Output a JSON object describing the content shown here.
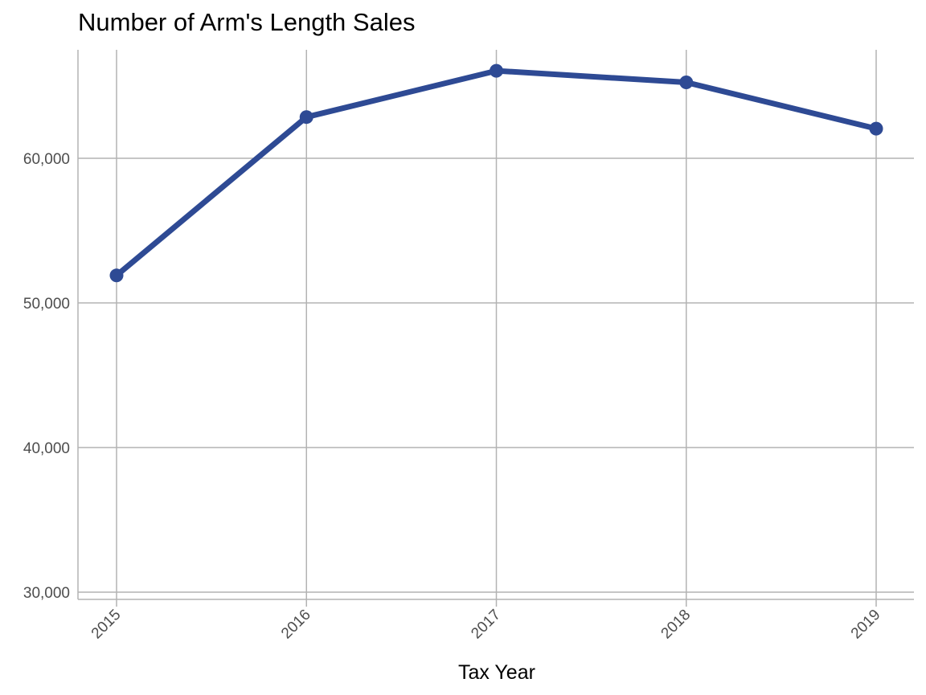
{
  "chart_data": {
    "type": "line",
    "title": "Number of Arm's Length Sales",
    "xlabel": "Tax Year",
    "ylabel": "",
    "categories": [
      "2015",
      "2016",
      "2017",
      "2018",
      "2019"
    ],
    "values": [
      51900,
      62850,
      66050,
      65250,
      62050
    ],
    "ylim": [
      29500,
      67500
    ],
    "yticks": [
      30000,
      40000,
      50000,
      60000
    ],
    "ytick_labels": [
      "30,000",
      "40,000",
      "50,000",
      "60,000"
    ],
    "grid": true,
    "legend": "none",
    "line_color": "#2e4a94",
    "grid_color": "#b3b3b3"
  }
}
